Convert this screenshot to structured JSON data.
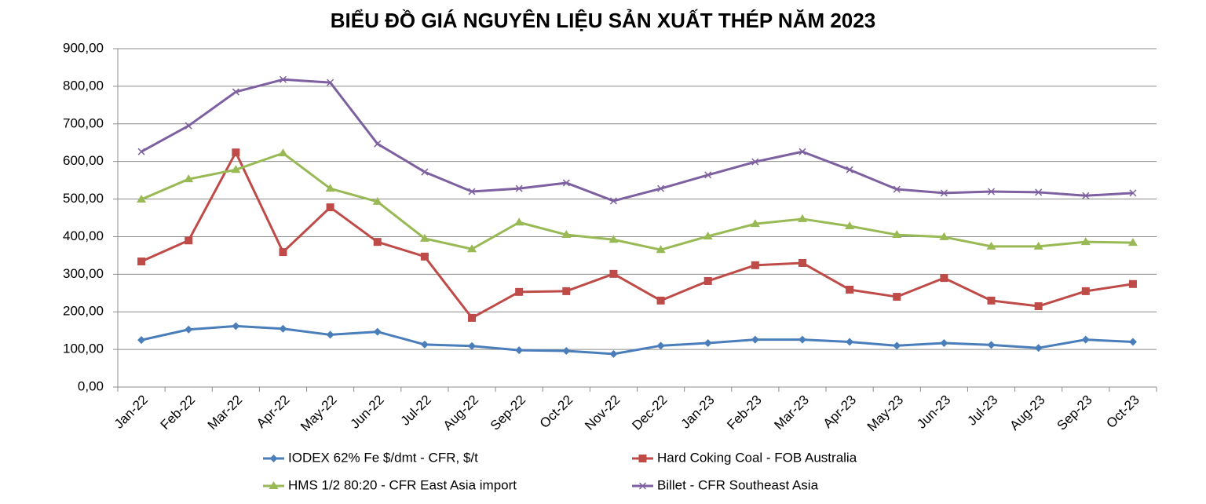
{
  "chart_data": {
    "type": "line",
    "title": "BIỂU ĐỒ GIÁ NGUYÊN LIỆU SẢN XUẤT THÉP NĂM 2023",
    "categories": [
      "Jan-22",
      "Feb-22",
      "Mar-22",
      "Apr-22",
      "May-22",
      "Jun-22",
      "Jul-22",
      "Aug-22",
      "Sep-22",
      "Oct-22",
      "Nov-22",
      "Dec-22",
      "Jan-23",
      "Feb-23",
      "Mar-23",
      "Apr-23",
      "May-23",
      "Jun-23",
      "Jul-23",
      "Aug-23",
      "Sep-23",
      "Oct-23"
    ],
    "ylim": [
      0,
      900
    ],
    "yticks": [
      {
        "value": 0,
        "label": "0,00"
      },
      {
        "value": 100,
        "label": "100,00"
      },
      {
        "value": 200,
        "label": "200,00"
      },
      {
        "value": 300,
        "label": "300,00"
      },
      {
        "value": 400,
        "label": "400,00"
      },
      {
        "value": 500,
        "label": "500,00"
      },
      {
        "value": 600,
        "label": "600,00"
      },
      {
        "value": 700,
        "label": "700,00"
      },
      {
        "value": 800,
        "label": "800,00"
      },
      {
        "value": 900,
        "label": "900,00"
      }
    ],
    "grid": true,
    "legend": "bottom",
    "series": [
      {
        "name": "IODEX 62% Fe $/dmt - CFR, $/t",
        "color": "#4a7ebb",
        "marker": "diamond",
        "values": [
          125,
          153,
          162,
          155,
          139,
          147,
          113,
          109,
          98,
          96,
          88,
          110,
          117,
          126,
          126,
          120,
          110,
          117,
          112,
          104,
          126,
          120
        ]
      },
      {
        "name": "Hard Coking Coal - FOB Australia",
        "color": "#be4b48",
        "marker": "square",
        "values": [
          334,
          390,
          624,
          359,
          478,
          386,
          347,
          184,
          253,
          255,
          301,
          230,
          282,
          324,
          330,
          259,
          240,
          290,
          230,
          215,
          255,
          274
        ]
      },
      {
        "name": "HMS 1/2 80:20 - CFR East Asia import",
        "color": "#98b954",
        "marker": "triangle",
        "values": [
          499,
          553,
          578,
          622,
          528,
          493,
          395,
          367,
          438,
          405,
          392,
          365,
          401,
          434,
          447,
          428,
          405,
          399,
          374,
          374,
          386,
          384
        ]
      },
      {
        "name": "Billet - CFR Southeast Asia",
        "color": "#7d60a0",
        "marker": "x",
        "values": [
          626,
          695,
          785,
          818,
          810,
          647,
          572,
          520,
          528,
          543,
          495,
          528,
          564,
          599,
          626,
          578,
          526,
          516,
          520,
          518,
          509,
          516
        ]
      }
    ]
  }
}
